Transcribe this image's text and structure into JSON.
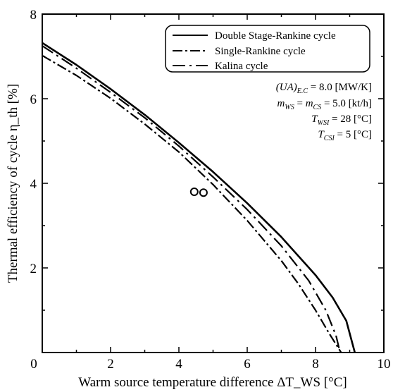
{
  "chart_data": {
    "type": "line",
    "xlabel": "Warm source temperature difference ΔT_WS [°C]",
    "ylabel": "Thermal efficiency of cycle η_th [%]",
    "xlim": [
      0,
      10
    ],
    "ylim": [
      0,
      8
    ],
    "x_ticks": [
      "0",
      "2",
      "4",
      "6",
      "8",
      "10"
    ],
    "y_ticks": [
      "2",
      "4",
      "6",
      "8"
    ],
    "grid": false,
    "legend_position": "top-right",
    "series": [
      {
        "name": "Double Stage-Rankine cycle",
        "style": "solid",
        "x": [
          0,
          1,
          2,
          3,
          4,
          5,
          6,
          7,
          8,
          8.5,
          8.9,
          9.15
        ],
        "y": [
          7.32,
          6.8,
          6.23,
          5.62,
          4.96,
          4.27,
          3.53,
          2.73,
          1.83,
          1.3,
          0.75,
          0.0
        ]
      },
      {
        "name": "Single-Rankine cycle",
        "style": "dash-dot",
        "x": [
          0,
          1,
          2,
          3,
          4,
          5,
          6,
          7,
          7.5,
          8.0,
          8.4,
          8.75
        ],
        "y": [
          7.02,
          6.55,
          6.01,
          5.4,
          4.74,
          3.97,
          3.12,
          2.17,
          1.62,
          1.0,
          0.45,
          0.0
        ]
      },
      {
        "name": "Kalina cycle",
        "style": "long-dash-dot",
        "x": [
          0,
          1,
          2,
          3,
          4,
          5,
          6,
          7,
          7.8,
          8.3,
          8.6,
          8.72
        ],
        "y": [
          7.25,
          6.72,
          6.15,
          5.55,
          4.88,
          4.15,
          3.38,
          2.52,
          1.7,
          1.0,
          0.4,
          0.0
        ]
      }
    ],
    "markers": [
      {
        "x": 4.45,
        "y": 3.8
      },
      {
        "x": 4.72,
        "y": 3.78
      }
    ],
    "legend": [
      "Double Stage-Rankine cycle",
      "Single-Rankine cycle",
      "Kalina cycle"
    ],
    "annotations": {
      "ua_lhs": "(UA)",
      "ua_sub": "E.C",
      "ua_rhs": " = 8.0 [MW/K]",
      "m_ws": "m",
      "m_ws_sub": "WS",
      "m_eq": " = ",
      "m_cs": "m",
      "m_cs_sub": "CS",
      "m_rhs": " = 5.0 [kt/h]",
      "t_wsi": "T",
      "t_wsi_sub": "WSI",
      "t_wsi_rhs": " = 28 [°C]",
      "t_csi": "T",
      "t_csi_sub": "CSI",
      "t_csi_rhs": " = 5 [°C]"
    }
  }
}
